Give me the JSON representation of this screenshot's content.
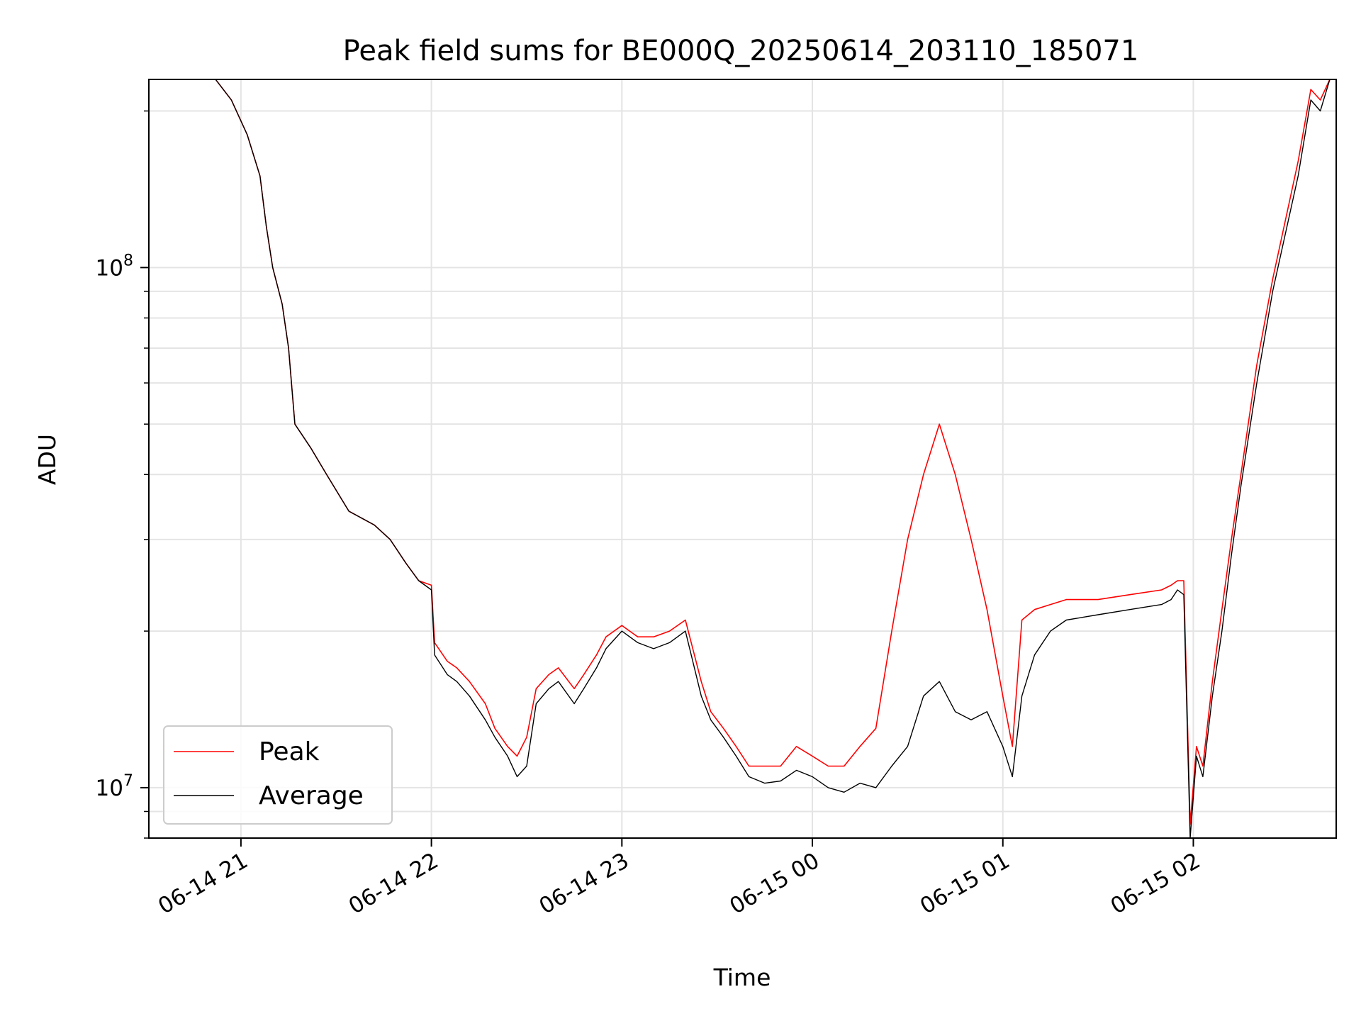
{
  "chart_data": {
    "type": "line",
    "title": "Peak field sums for BE000Q_20250614_203110_185071",
    "xlabel": "Time",
    "ylabel": "ADU",
    "yscale": "log",
    "xlim": [
      "2025-06-14 20:31",
      "2025-06-15 02:45"
    ],
    "ylim": [
      8000000,
      230000000
    ],
    "x_ticks": [
      {
        "label": "06-14 21",
        "value": "2025-06-14 21:00"
      },
      {
        "label": "06-14 22",
        "value": "2025-06-14 22:00"
      },
      {
        "label": "06-14 23",
        "value": "2025-06-14 23:00"
      },
      {
        "label": "06-15 00",
        "value": "2025-06-15 00:00"
      },
      {
        "label": "06-15 01",
        "value": "2025-06-15 01:00"
      },
      {
        "label": "06-15 02",
        "value": "2025-06-15 02:00"
      }
    ],
    "y_ticks": [
      {
        "base": "10",
        "exp": "7",
        "value": 10000000
      },
      {
        "base": "10",
        "exp": "8",
        "value": 100000000
      }
    ],
    "grid": true,
    "legend_position": "lower-left",
    "series": [
      {
        "name": "Average",
        "color": "#000000",
        "x": [
          "2025-06-14 20:31",
          "2025-06-14 20:45",
          "2025-06-14 20:52",
          "2025-06-14 20:57",
          "2025-06-14 21:02",
          "2025-06-14 21:06",
          "2025-06-14 21:08",
          "2025-06-14 21:10",
          "2025-06-14 21:13",
          "2025-06-14 21:15",
          "2025-06-14 21:17",
          "2025-06-14 21:22",
          "2025-06-14 21:27",
          "2025-06-14 21:34",
          "2025-06-14 21:42",
          "2025-06-14 21:47",
          "2025-06-14 21:52",
          "2025-06-14 21:56",
          "2025-06-14 22:00",
          "2025-06-14 22:01",
          "2025-06-14 22:05",
          "2025-06-14 22:08",
          "2025-06-14 22:12",
          "2025-06-14 22:17",
          "2025-06-14 22:20",
          "2025-06-14 22:24",
          "2025-06-14 22:27",
          "2025-06-14 22:30",
          "2025-06-14 22:33",
          "2025-06-14 22:37",
          "2025-06-14 22:40",
          "2025-06-14 22:45",
          "2025-06-14 22:48",
          "2025-06-14 22:52",
          "2025-06-14 22:55",
          "2025-06-14 23:00",
          "2025-06-14 23:05",
          "2025-06-14 23:10",
          "2025-06-14 23:15",
          "2025-06-14 23:20",
          "2025-06-14 23:25",
          "2025-06-14 23:28",
          "2025-06-14 23:32",
          "2025-06-14 23:36",
          "2025-06-14 23:40",
          "2025-06-14 23:45",
          "2025-06-14 23:50",
          "2025-06-14 23:55",
          "2025-06-15 00:00",
          "2025-06-15 00:05",
          "2025-06-15 00:10",
          "2025-06-15 00:15",
          "2025-06-15 00:20",
          "2025-06-15 00:25",
          "2025-06-15 00:30",
          "2025-06-15 00:35",
          "2025-06-15 00:40",
          "2025-06-15 00:45",
          "2025-06-15 00:50",
          "2025-06-15 00:55",
          "2025-06-15 01:00",
          "2025-06-15 01:03",
          "2025-06-15 01:06",
          "2025-06-15 01:10",
          "2025-06-15 01:15",
          "2025-06-15 01:20",
          "2025-06-15 01:30",
          "2025-06-15 01:40",
          "2025-06-15 01:50",
          "2025-06-15 01:53",
          "2025-06-15 01:55",
          "2025-06-15 01:57",
          "2025-06-15 01:59",
          "2025-06-15 02:01",
          "2025-06-15 02:03",
          "2025-06-15 02:06",
          "2025-06-15 02:09",
          "2025-06-15 02:12",
          "2025-06-15 02:15",
          "2025-06-15 02:20",
          "2025-06-15 02:25",
          "2025-06-15 02:33",
          "2025-06-15 02:37",
          "2025-06-15 02:40",
          "2025-06-15 02:43"
        ],
        "values": [
          230000000,
          230000000,
          230000000,
          210000000,
          180000000,
          150000000,
          120000000,
          100000000,
          85000000,
          70000000,
          50000000,
          45000000,
          40000000,
          34000000,
          32000000,
          30000000,
          27000000,
          25000000,
          24000000,
          18000000,
          16500000,
          16000000,
          15000000,
          13500000,
          12500000,
          11500000,
          10500000,
          11000000,
          14500000,
          15500000,
          16000000,
          14500000,
          15500000,
          17000000,
          18500000,
          20000000,
          19000000,
          18500000,
          19000000,
          20000000,
          15000000,
          13500000,
          12500000,
          11500000,
          10500000,
          10200000,
          10300000,
          10800000,
          10500000,
          10000000,
          9800000,
          10200000,
          10000000,
          11000000,
          12000000,
          15000000,
          16000000,
          14000000,
          13500000,
          14000000,
          12000000,
          10500000,
          15000000,
          18000000,
          20000000,
          21000000,
          21500000,
          22000000,
          22500000,
          23000000,
          24000000,
          23500000,
          8000000,
          11500000,
          10500000,
          15000000,
          20000000,
          28000000,
          38000000,
          60000000,
          90000000,
          150000000,
          210000000,
          200000000,
          230000000
        ]
      },
      {
        "name": "Peak",
        "color": "#ff0000",
        "x": [
          "2025-06-14 20:31",
          "2025-06-14 20:45",
          "2025-06-14 20:52",
          "2025-06-14 20:57",
          "2025-06-14 21:02",
          "2025-06-14 21:06",
          "2025-06-14 21:08",
          "2025-06-14 21:10",
          "2025-06-14 21:13",
          "2025-06-14 21:15",
          "2025-06-14 21:17",
          "2025-06-14 21:22",
          "2025-06-14 21:27",
          "2025-06-14 21:34",
          "2025-06-14 21:42",
          "2025-06-14 21:47",
          "2025-06-14 21:52",
          "2025-06-14 21:56",
          "2025-06-14 22:00",
          "2025-06-14 22:01",
          "2025-06-14 22:05",
          "2025-06-14 22:08",
          "2025-06-14 22:12",
          "2025-06-14 22:17",
          "2025-06-14 22:20",
          "2025-06-14 22:24",
          "2025-06-14 22:27",
          "2025-06-14 22:30",
          "2025-06-14 22:33",
          "2025-06-14 22:37",
          "2025-06-14 22:40",
          "2025-06-14 22:45",
          "2025-06-14 22:48",
          "2025-06-14 22:52",
          "2025-06-14 22:55",
          "2025-06-14 23:00",
          "2025-06-14 23:05",
          "2025-06-14 23:10",
          "2025-06-14 23:15",
          "2025-06-14 23:20",
          "2025-06-14 23:25",
          "2025-06-14 23:28",
          "2025-06-14 23:32",
          "2025-06-14 23:36",
          "2025-06-14 23:40",
          "2025-06-14 23:45",
          "2025-06-14 23:50",
          "2025-06-14 23:55",
          "2025-06-15 00:00",
          "2025-06-15 00:05",
          "2025-06-15 00:10",
          "2025-06-15 00:15",
          "2025-06-15 00:20",
          "2025-06-15 00:25",
          "2025-06-15 00:30",
          "2025-06-15 00:35",
          "2025-06-15 00:40",
          "2025-06-15 00:45",
          "2025-06-15 00:50",
          "2025-06-15 00:55",
          "2025-06-15 01:00",
          "2025-06-15 01:03",
          "2025-06-15 01:06",
          "2025-06-15 01:10",
          "2025-06-15 01:15",
          "2025-06-15 01:20",
          "2025-06-15 01:30",
          "2025-06-15 01:40",
          "2025-06-15 01:50",
          "2025-06-15 01:53",
          "2025-06-15 01:55",
          "2025-06-15 01:57",
          "2025-06-15 01:59",
          "2025-06-15 02:01",
          "2025-06-15 02:03",
          "2025-06-15 02:06",
          "2025-06-15 02:09",
          "2025-06-15 02:12",
          "2025-06-15 02:15",
          "2025-06-15 02:20",
          "2025-06-15 02:25",
          "2025-06-15 02:33",
          "2025-06-15 02:37",
          "2025-06-15 02:40",
          "2025-06-15 02:43"
        ],
        "values": [
          230000000,
          230000000,
          230000000,
          210000000,
          180000000,
          150000000,
          120000000,
          100000000,
          85000000,
          70000000,
          50000000,
          45000000,
          40000000,
          34000000,
          32000000,
          30000000,
          27000000,
          25000000,
          24500000,
          19000000,
          17500000,
          17000000,
          16000000,
          14500000,
          13000000,
          12000000,
          11500000,
          12500000,
          15500000,
          16500000,
          17000000,
          15500000,
          16500000,
          18000000,
          19500000,
          20500000,
          19500000,
          19500000,
          20000000,
          21000000,
          16000000,
          14000000,
          13000000,
          12000000,
          11000000,
          11000000,
          11000000,
          12000000,
          11500000,
          11000000,
          11000000,
          12000000,
          13000000,
          20000000,
          30000000,
          40000000,
          50000000,
          40000000,
          30000000,
          22000000,
          15000000,
          12000000,
          21000000,
          22000000,
          22500000,
          23000000,
          23000000,
          23500000,
          24000000,
          24500000,
          25000000,
          25000000,
          8500000,
          12000000,
          11000000,
          16000000,
          22000000,
          30000000,
          40000000,
          65000000,
          95000000,
          160000000,
          220000000,
          210000000,
          230000000
        ]
      }
    ]
  }
}
